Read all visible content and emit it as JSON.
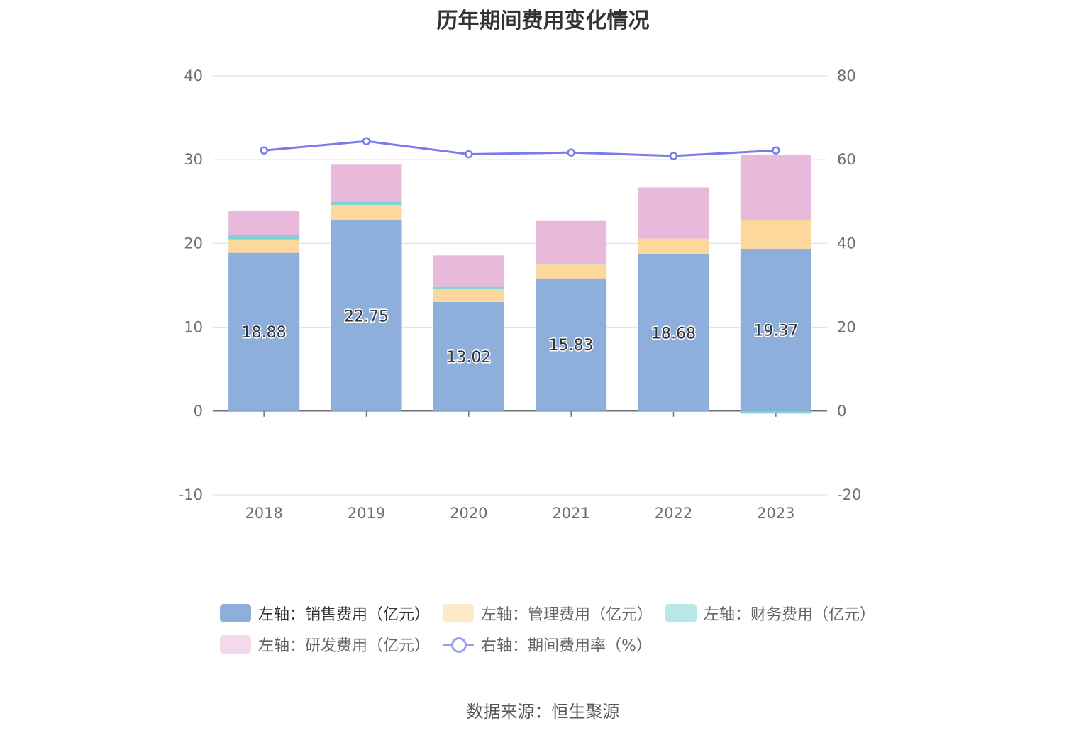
{
  "chart_data": {
    "type": "bar",
    "title": "历年期间费用变化情况",
    "categories": [
      "2018",
      "2019",
      "2020",
      "2021",
      "2022",
      "2023"
    ],
    "stacked": true,
    "series": [
      {
        "name": "左轴：销售费用（亿元）",
        "axis": "left",
        "type": "bar",
        "color": "#8eaedb",
        "values": [
          18.88,
          22.75,
          13.02,
          15.83,
          18.68,
          19.37
        ],
        "labels": [
          "18.88",
          "22.75",
          "13.02",
          "15.83",
          "18.68",
          "19.37"
        ]
      },
      {
        "name": "左轴：管理费用（亿元）",
        "axis": "left",
        "type": "bar",
        "color": "#fdd89c",
        "values": [
          1.6,
          1.85,
          1.6,
          1.65,
          1.9,
          3.4
        ]
      },
      {
        "name": "左轴：财务费用（亿元）",
        "axis": "left",
        "type": "bar",
        "color": "#7fd3d6",
        "values": [
          0.5,
          0.4,
          0.2,
          0.1,
          -0.1,
          -0.3
        ]
      },
      {
        "name": "左轴：研发费用（亿元）",
        "axis": "left",
        "type": "bar",
        "color": "#e8b9da",
        "values": [
          2.9,
          4.4,
          3.75,
          5.1,
          6.1,
          7.8
        ]
      },
      {
        "name": "右轴：期间费用率（%）",
        "axis": "right",
        "type": "line",
        "color": "#7b7be8",
        "values": [
          62.2,
          64.4,
          61.3,
          61.7,
          60.9,
          62.2
        ]
      }
    ],
    "ylim_left": [
      -10,
      40
    ],
    "yticks_left": [
      "40",
      "30",
      "20",
      "10",
      "0",
      "-10"
    ],
    "ylim_right": [
      -20,
      80
    ],
    "yticks_right": [
      "80",
      "60",
      "40",
      "20",
      "0",
      "-20"
    ],
    "grid": true,
    "legend_position": "bottom"
  },
  "source_note": "数据来源：恒生聚源"
}
